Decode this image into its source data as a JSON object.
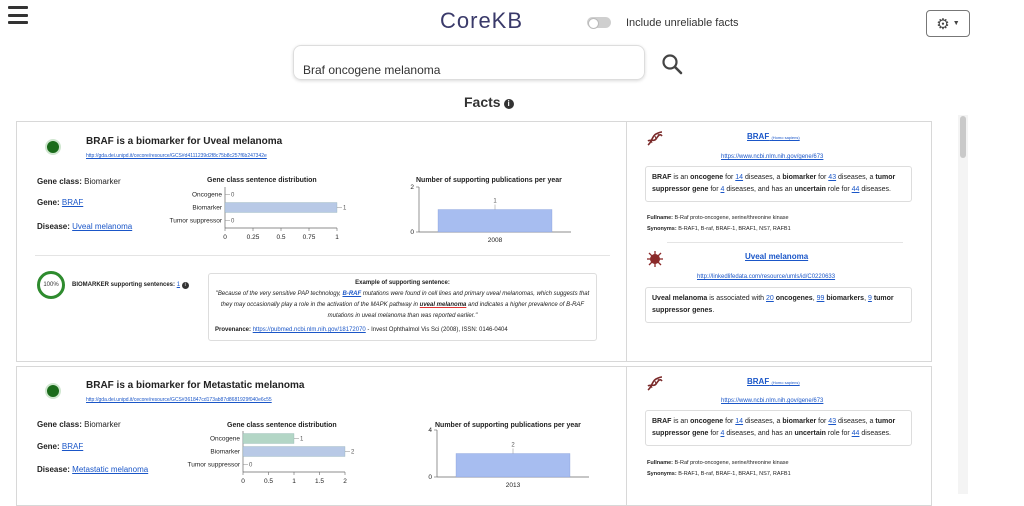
{
  "app": {
    "logo": "CoreKB",
    "toggle_label": "Include unreliable facts",
    "search_value": "Braf oncogene melanoma",
    "section_title": "Facts"
  },
  "facts": [
    {
      "title": "BRAF is a biomarker for Uveal melanoma",
      "url": "http://gda.dei.unipd.it/cecore/resource/GCS#d4111239d2f8c75b8c257f6b247342e",
      "gene_class_label": "Gene class:",
      "gene_class": "Biomarker",
      "gene_label": "Gene:",
      "gene": "BRAF",
      "disease_label": "Disease:",
      "disease": "Uveal melanoma",
      "dist_chart": {
        "title": "Gene class sentence distribution",
        "categories": [
          "Oncogene",
          "Biomarker",
          "Tumor suppressor"
        ],
        "values": [
          0,
          1,
          0
        ],
        "value_labels": [
          "0",
          "1",
          "0"
        ],
        "xticks": [
          "0",
          "0.25",
          "0.5",
          "0.75",
          "1"
        ],
        "xmax": 1
      },
      "pub_chart": {
        "title": "Number of supporting publications per year",
        "x": [
          "2008"
        ],
        "values": [
          1
        ],
        "value_labels": [
          "1"
        ],
        "yticks": [
          "0",
          "2"
        ],
        "ymax": 2
      },
      "reliability": "100%",
      "supporting_label": "BIOMARKER supporting sentences:",
      "supporting_count": "1",
      "example_header": "Example of supporting sentence:",
      "example_pre": "\"Because of the very sensitive PAP technology, ",
      "example_gene": "B-RAF",
      "example_mid": " mutations were found in cell lines and primary uveal melanomas, which suggests that they may occasionally play a role in the activation of the MAPK pathway in ",
      "example_disease": "uveal melanoma",
      "example_post": " and indicates a higher prevalence of B-RAF mutations in uveal melanoma than was reported earlier.\"",
      "provenance_label": "Provenance:",
      "provenance_url": "https://pubmed.ncbi.nlm.nih.gov/18172070",
      "provenance_rest": " - Invest Ophthalmol Vis Sci (2008), ISSN: 0146-0404",
      "side": {
        "gene_name": "BRAF",
        "gene_species": "(Homo sapiens)",
        "gene_url": "https://www.ncbi.nlm.nih.gov/gene/673",
        "gene_summary": {
          "name": "BRAF",
          "t1": " is an ",
          "oncogene": "oncogene",
          "t2": " for ",
          "n_onc": "14",
          "t3": " diseases, a ",
          "biomarker": "biomarker",
          "t4": " for ",
          "n_bio": "43",
          "t5": " diseases, a ",
          "tsg": "tumor suppressor gene",
          "t6": " for ",
          "n_tsg": "4",
          "t7": " diseases, and has an ",
          "uncertain": "uncertain",
          "t8": " role for ",
          "n_unc": "44",
          "t9": " diseases."
        },
        "fullname_label": "Fullname:",
        "fullname": "B-Raf proto-oncogene, serine/threonine kinase",
        "synonyms_label": "Synonyms:",
        "synonyms": "B-RAF1, B-raf, BRAF-1, BRAF1, NS7, RAFB1",
        "disease_name": "Uveal melanoma",
        "disease_url": "http://linkedlifedata.com/resource/umls/id/C0220633",
        "disease_summary": {
          "name": "Uveal melanoma",
          "t1": " is associated with ",
          "n_onc": "20",
          "oncogenes": " oncogenes",
          "t2": ", ",
          "n_bio": "99",
          "biomarkers": " biomarkers",
          "t3": ", ",
          "n_tsg": "9",
          "tsg": " tumor suppressor genes",
          "t4": "."
        }
      }
    },
    {
      "title": "BRAF is a biomarker for Metastatic melanoma",
      "url": "http://gda.dei.unipd.it/cecore/resource/GCS#361847cd173ab87d8681929f040e6c55",
      "gene_class_label": "Gene class:",
      "gene_class": "Biomarker",
      "gene_label": "Gene:",
      "gene": "BRAF",
      "disease_label": "Disease:",
      "disease": "Metastatic melanoma",
      "dist_chart": {
        "title": "Gene class sentence distribution",
        "categories": [
          "Oncogene",
          "Biomarker",
          "Tumor suppressor"
        ],
        "values": [
          1,
          2,
          0
        ],
        "value_labels": [
          "1",
          "2",
          "0"
        ],
        "xticks": [
          "0",
          "0.5",
          "1",
          "1.5",
          "2"
        ],
        "xmax": 2
      },
      "pub_chart": {
        "title": "Number of supporting publications per year",
        "x": [
          "2013"
        ],
        "values": [
          2
        ],
        "value_labels": [
          "2"
        ],
        "yticks": [
          "0",
          "4"
        ],
        "ymax": 4
      },
      "side": {
        "gene_name": "BRAF",
        "gene_species": "(Homo sapiens)",
        "gene_url": "https://www.ncbi.nlm.nih.gov/gene/673",
        "gene_summary": {
          "name": "BRAF",
          "t1": " is an ",
          "oncogene": "oncogene",
          "t2": " for ",
          "n_onc": "14",
          "t3": " diseases, a ",
          "biomarker": "biomarker",
          "t4": " for ",
          "n_bio": "43",
          "t5": " diseases, a ",
          "tsg": "tumor suppressor gene",
          "t6": " for ",
          "n_tsg": "4",
          "t7": " diseases, and has an ",
          "uncertain": "uncertain",
          "t8": " role for ",
          "n_unc": "44",
          "t9": " diseases."
        },
        "fullname_label": "Fullname:",
        "fullname": "B-Raf proto-oncogene, serine/threonine kinase",
        "synonyms_label": "Synonyms:",
        "synonyms": "B-RAF1, B-raf, BRAF-1, BRAF1, NS7, RAFB1"
      }
    }
  ],
  "colors": {
    "oncogene": "#b3d6c6",
    "biomarker": "#b8c9e6",
    "pub_bar": "#a7bdf0",
    "dot": "#1a6b1a",
    "link": "#1a56c8"
  },
  "icons": [
    "hamburger-icon",
    "gear-icon",
    "search-icon",
    "info-icon",
    "dna-icon",
    "virus-icon"
  ]
}
